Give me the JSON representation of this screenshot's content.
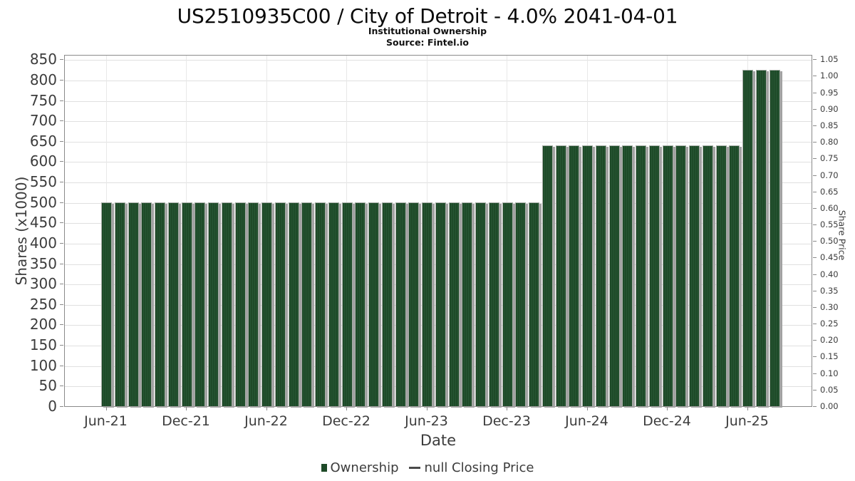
{
  "header": {
    "title": "US2510935C00 / City of Detroit - 4.0% 2041-04-01",
    "subtitle": "Institutional Ownership",
    "source": "Source: Fintel.io"
  },
  "legend": {
    "ownership_label": "Ownership",
    "price_label": "null Closing Price"
  },
  "colors": {
    "bar_green": "#1e4a28",
    "bar_shadow": "#a2a2a2",
    "grid": "#e0e0e0",
    "axis": "#8a8a8a",
    "text": "#3c3c3c"
  },
  "chart_data": {
    "type": "bar",
    "title": "US2510935C00 / City of Detroit - 4.0% 2041-04-01",
    "subtitle": "Institutional Ownership",
    "source": "Source: Fintel.io",
    "xlabel": "Date",
    "ylabel_left": "Shares (x1000)",
    "ylabel_right": "Share Price",
    "ylim_left": [
      0,
      850
    ],
    "ytick_step_left": 50,
    "ylim_right": [
      0,
      1.05
    ],
    "ytick_step_right": 0.05,
    "grid": true,
    "legend_position": "bottom",
    "x_tick_labels": [
      "Jun-21",
      "Dec-21",
      "Jun-22",
      "Dec-22",
      "Jun-23",
      "Dec-23",
      "Jun-24",
      "Dec-24",
      "Jun-25"
    ],
    "x_tick_every": 6,
    "categories": [
      "Jun-21",
      "Jul-21",
      "Aug-21",
      "Sep-21",
      "Oct-21",
      "Nov-21",
      "Dec-21",
      "Jan-22",
      "Feb-22",
      "Mar-22",
      "Apr-22",
      "May-22",
      "Jun-22",
      "Jul-22",
      "Aug-22",
      "Sep-22",
      "Oct-22",
      "Nov-22",
      "Dec-22",
      "Jan-23",
      "Feb-23",
      "Mar-23",
      "Apr-23",
      "May-23",
      "Jun-23",
      "Jul-23",
      "Aug-23",
      "Sep-23",
      "Oct-23",
      "Nov-23",
      "Dec-23",
      "Jan-24",
      "Feb-24",
      "Mar-24",
      "Apr-24",
      "May-24",
      "Jun-24",
      "Jul-24",
      "Aug-24",
      "Sep-24",
      "Oct-24",
      "Nov-24",
      "Dec-24",
      "Jan-25",
      "Feb-25",
      "Mar-25",
      "Apr-25",
      "May-25",
      "Jun-25",
      "Jul-25",
      "Aug-25"
    ],
    "series": [
      {
        "name": "Ownership",
        "unit": "shares x1000",
        "values": [
          500,
          500,
          500,
          500,
          500,
          500,
          500,
          500,
          500,
          500,
          500,
          500,
          500,
          500,
          500,
          500,
          500,
          500,
          500,
          500,
          500,
          500,
          500,
          500,
          500,
          500,
          500,
          500,
          500,
          500,
          500,
          500,
          500,
          640,
          640,
          640,
          640,
          640,
          640,
          640,
          640,
          640,
          640,
          640,
          640,
          640,
          640,
          640,
          825,
          825,
          825
        ]
      },
      {
        "name": "null Closing Price",
        "unit": "share price",
        "values": []
      }
    ]
  }
}
